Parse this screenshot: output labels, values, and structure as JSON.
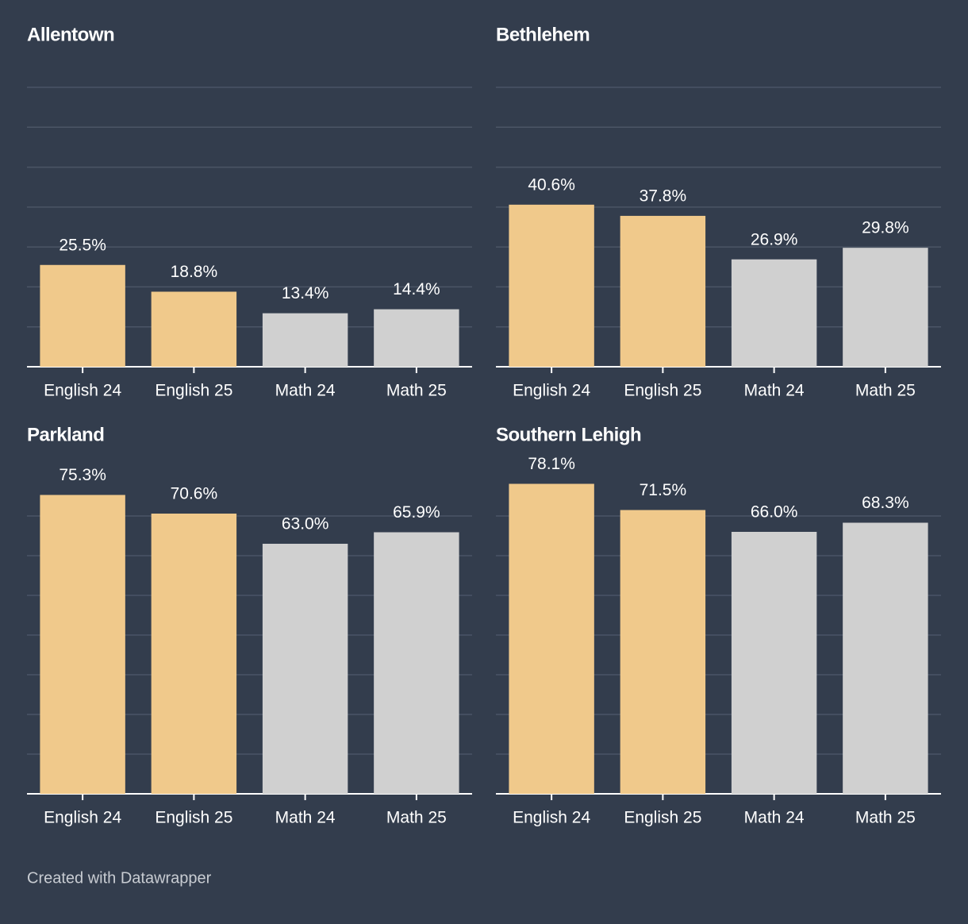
{
  "chart_data": [
    {
      "type": "bar",
      "title": "Allentown",
      "categories": [
        "English 24",
        "English 25",
        "Math 24",
        "Math 25"
      ],
      "values": [
        25.5,
        18.8,
        13.4,
        14.4
      ],
      "value_labels": [
        "25.5%",
        "18.8%",
        "13.4%",
        "14.4%"
      ],
      "colors": [
        "#f0c98b",
        "#f0c98b",
        "#d0d0d0",
        "#d0d0d0"
      ],
      "ylim": [
        0,
        70
      ],
      "yticks": [
        0,
        10,
        20,
        30,
        40,
        50,
        60,
        70
      ],
      "grid": true
    },
    {
      "type": "bar",
      "title": "Bethlehem",
      "categories": [
        "English 24",
        "English 25",
        "Math 24",
        "Math 25"
      ],
      "values": [
        40.6,
        37.8,
        26.9,
        29.8
      ],
      "value_labels": [
        "40.6%",
        "37.8%",
        "26.9%",
        "29.8%"
      ],
      "colors": [
        "#f0c98b",
        "#f0c98b",
        "#d0d0d0",
        "#d0d0d0"
      ],
      "ylim": [
        0,
        70
      ],
      "yticks": [
        0,
        10,
        20,
        30,
        40,
        50,
        60,
        70
      ],
      "grid": true
    },
    {
      "type": "bar",
      "title": "Parkland",
      "categories": [
        "English 24",
        "English 25",
        "Math 24",
        "Math 25"
      ],
      "values": [
        75.3,
        70.6,
        63.0,
        65.9
      ],
      "value_labels": [
        "75.3%",
        "70.6%",
        "63.0%",
        "65.9%"
      ],
      "colors": [
        "#f0c98b",
        "#f0c98b",
        "#d0d0d0",
        "#d0d0d0"
      ],
      "ylim": [
        0,
        80
      ],
      "yticks": [
        0,
        10,
        20,
        30,
        40,
        50,
        60,
        70
      ],
      "grid": true
    },
    {
      "type": "bar",
      "title": "Southern Lehigh",
      "categories": [
        "English 24",
        "English 25",
        "Math 24",
        "Math 25"
      ],
      "values": [
        78.1,
        71.5,
        66.0,
        68.3
      ],
      "value_labels": [
        "78.1%",
        "71.5%",
        "66.0%",
        "68.3%"
      ],
      "colors": [
        "#f0c98b",
        "#f0c98b",
        "#d0d0d0",
        "#d0d0d0"
      ],
      "ylim": [
        0,
        80
      ],
      "yticks": [
        0,
        10,
        20,
        30,
        40,
        50,
        60,
        70
      ],
      "grid": true
    }
  ],
  "footer": "Created with Datawrapper"
}
